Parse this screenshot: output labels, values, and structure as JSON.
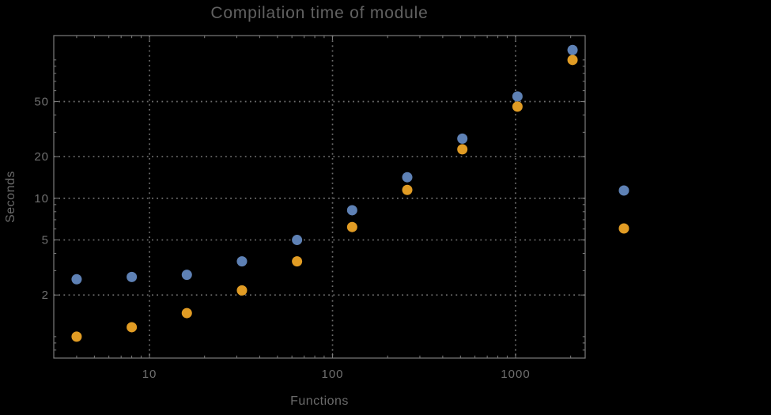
{
  "chart_data": {
    "type": "scatter",
    "title": "Compilation time of module",
    "xlabel": "Functions",
    "ylabel": "Seconds",
    "x_scale": "log",
    "y_scale": "log",
    "xlim": [
      3,
      2400
    ],
    "ylim": [
      0.7,
      150
    ],
    "x_ticks": [
      10,
      100,
      1000
    ],
    "y_ticks": [
      2,
      5,
      10,
      20,
      50
    ],
    "grid": "dotted lines at labeled major ticks",
    "x": [
      4,
      8,
      16,
      32,
      64,
      128,
      256,
      512,
      1024,
      2048
    ],
    "series": [
      {
        "name": "blue-series",
        "color": "#5e81b5",
        "values": [
          2.6,
          2.7,
          2.8,
          3.5,
          5.0,
          8.2,
          14.2,
          27,
          54.5,
          118
        ]
      },
      {
        "name": "orange-series",
        "color": "#e19c24",
        "values": [
          1.0,
          1.17,
          1.48,
          2.16,
          3.5,
          6.2,
          11.5,
          22.6,
          46,
          100
        ]
      }
    ],
    "legend": {
      "position": "right-outside",
      "visible_labels": false,
      "markers": [
        {
          "color": "#5e81b5"
        },
        {
          "color": "#e19c24"
        }
      ]
    }
  },
  "colors": {
    "background": "#000000",
    "frame": "#7c7c7c",
    "gridline": "#6f6f6f",
    "tick_label": "#6f6f6f",
    "title_text": "#616161",
    "axis_label_text": "#6a6a6a"
  }
}
